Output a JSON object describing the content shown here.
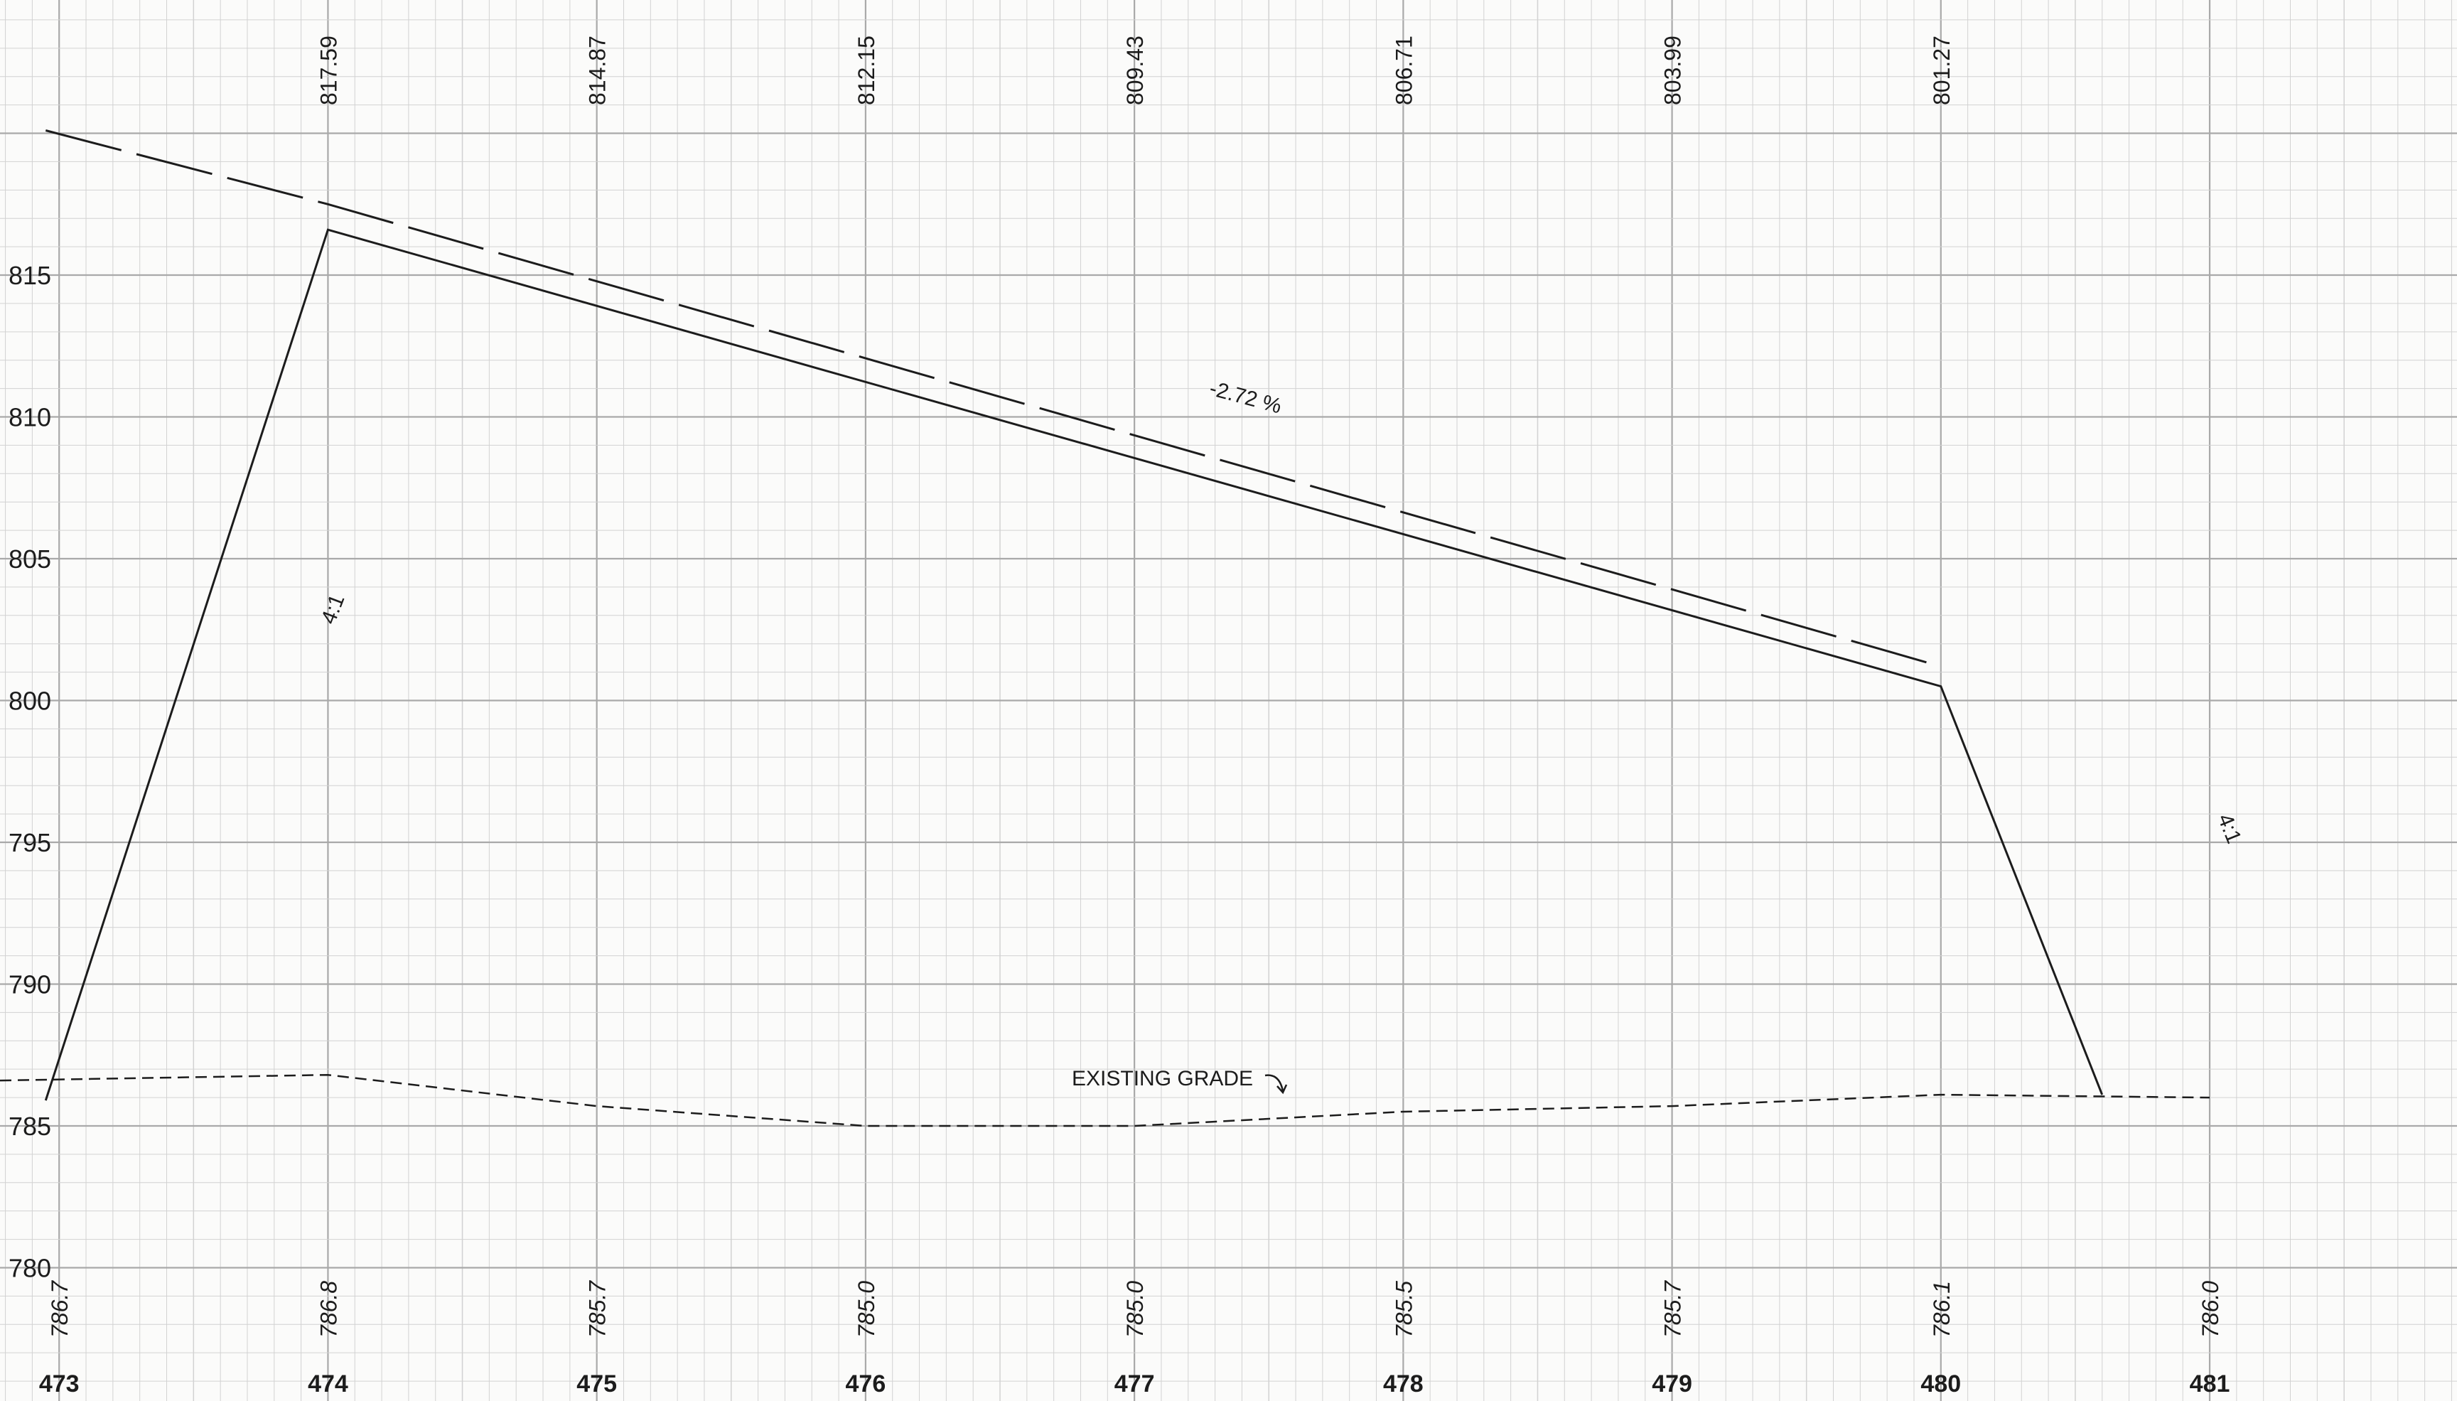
{
  "sheet": {
    "x_axis": {
      "stations": [
        473,
        474,
        475,
        476,
        477,
        478,
        479,
        480,
        481
      ],
      "range": [
        472.78,
        481.92
      ]
    },
    "y_axis": {
      "elevations": [
        815,
        810,
        805,
        800,
        795,
        790,
        785,
        780
      ],
      "range": [
        775.3,
        824.7
      ]
    },
    "grade_elevations": [
      {
        "station": 474,
        "label": "817.59"
      },
      {
        "station": 475,
        "label": "814.87"
      },
      {
        "station": 476,
        "label": "812.15"
      },
      {
        "station": 477,
        "label": "809.43"
      },
      {
        "station": 478,
        "label": "806.71"
      },
      {
        "station": 479,
        "label": "803.99"
      },
      {
        "station": 480,
        "label": "801.27"
      }
    ],
    "existing_elevations": [
      {
        "station": 473,
        "label": "786.7"
      },
      {
        "station": 474,
        "label": "786.8"
      },
      {
        "station": 475,
        "label": "785.7"
      },
      {
        "station": 476,
        "label": "785.0"
      },
      {
        "station": 477,
        "label": "785.0"
      },
      {
        "station": 478,
        "label": "785.5"
      },
      {
        "station": 479,
        "label": "785.7"
      },
      {
        "station": 480,
        "label": "786.1"
      },
      {
        "station": 481,
        "label": "786.0"
      }
    ],
    "annotations": {
      "grade_slope": "-2.72 %",
      "left_slope": "4:1",
      "right_slope": "4:1",
      "existing_grade": "EXISTING GRADE"
    },
    "profile": {
      "proposed_grade": [
        [
          472.95,
          820.1
        ],
        [
          474.0,
          817.5
        ],
        [
          480.0,
          801.2
        ]
      ],
      "embankment": [
        [
          472.95,
          785.9
        ],
        [
          474.0,
          816.6
        ],
        [
          480.0,
          800.5
        ],
        [
          480.6,
          786.1
        ]
      ],
      "existing_ground": [
        [
          472.78,
          786.6
        ],
        [
          474.0,
          786.8
        ],
        [
          475.0,
          785.7
        ],
        [
          476.0,
          785.0
        ],
        [
          477.0,
          785.0
        ],
        [
          478.0,
          785.5
        ],
        [
          479.0,
          785.7
        ],
        [
          480.0,
          786.1
        ],
        [
          481.0,
          786.0
        ]
      ]
    },
    "colors": {
      "grid_minor": "#d2d2d2",
      "grid_major": "#a9a9a9",
      "ink": "#1c1c1c",
      "paper": "#fbfbfa"
    }
  }
}
